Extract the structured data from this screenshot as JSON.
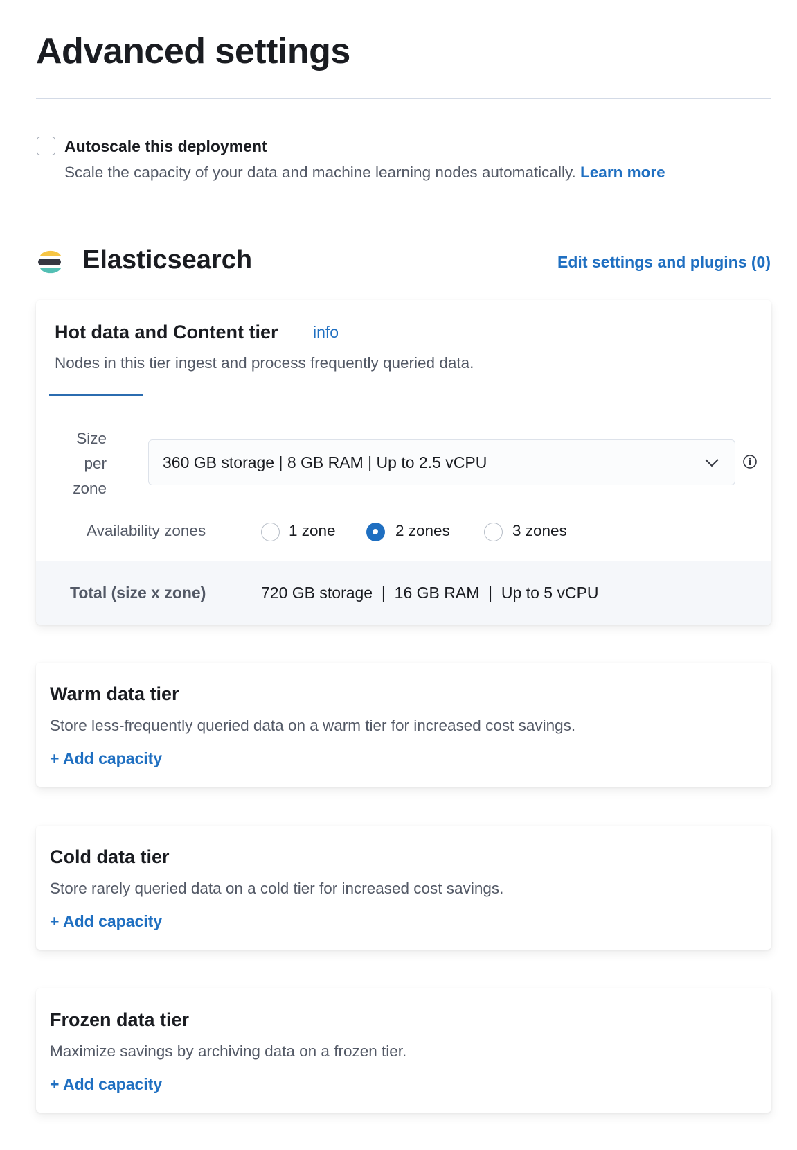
{
  "page_title": "Advanced settings",
  "autoscale": {
    "label": "Autoscale this deployment",
    "checked": false,
    "description": "Scale the capacity of your data and machine learning nodes automatically.",
    "learn_more": "Learn more"
  },
  "elasticsearch": {
    "title": "Elasticsearch",
    "edit_link": "Edit settings and plugins (0)",
    "logo_colors": [
      "#f6c544",
      "#343741",
      "#53bfb4"
    ]
  },
  "hot_tier": {
    "title": "Hot data and Content tier",
    "info_link": "info",
    "description": "Nodes in this tier ingest and process frequently queried data.",
    "size_label": [
      "Size",
      "per",
      "zone"
    ],
    "size_value": "360 GB storage | 8 GB RAM | Up to 2.5 vCPU",
    "az_label": "Availability zones",
    "zones": [
      {
        "label": "1 zone",
        "selected": false
      },
      {
        "label": "2 zones",
        "selected": true
      },
      {
        "label": "3 zones",
        "selected": false
      }
    ],
    "total_label": "Total (size x zone)",
    "total_storage": "720 GB storage",
    "total_ram": "16 GB RAM",
    "total_cpu": "Up to 5 vCPU",
    "separator": "|"
  },
  "tiers": [
    {
      "title": "Warm data tier",
      "description": "Store less-frequently queried data on a warm tier for increased cost savings.",
      "action": "+ Add capacity"
    },
    {
      "title": "Cold data tier",
      "description": "Store rarely queried data on a cold tier for increased cost savings.",
      "action": "+ Add capacity"
    },
    {
      "title": "Frozen data tier",
      "description": "Maximize savings by archiving data on a frozen tier.",
      "action": "+ Add capacity"
    }
  ],
  "colors": {
    "accent": "#1f6fc1",
    "text": "#1a1c21",
    "subdued": "#535966"
  }
}
